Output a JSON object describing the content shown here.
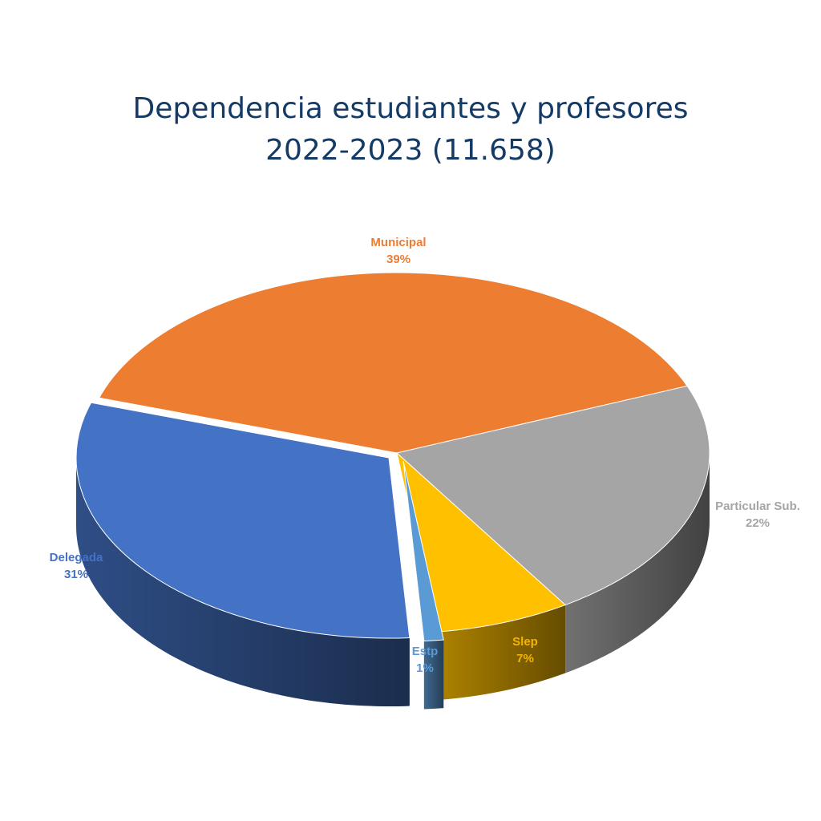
{
  "chart_data": {
    "type": "pie",
    "title_line1": "Dependencia estudiantes y profesores",
    "title_line2": "2022-2023 (11.658)",
    "slices": [
      {
        "name": "Municipal",
        "value": 39,
        "label": "39%",
        "color": "#ED7D31"
      },
      {
        "name": "Particular Sub.",
        "value": 22,
        "label": "22%",
        "color": "#A5A5A5"
      },
      {
        "name": "Slep",
        "value": 7,
        "label": "7%",
        "color": "#FFC000"
      },
      {
        "name": "Estp",
        "value": 1,
        "label": "1%",
        "color": "#5B9BD5"
      },
      {
        "name": "Delegada",
        "value": 31,
        "label": "31%",
        "color": "#4472C4"
      }
    ],
    "label_colors": {
      "Municipal": "#ED7D31",
      "Particular Sub.": "#A5A5A5",
      "Slep": "#F5B400",
      "Estp": "#5B9BD5",
      "Delegada": "#4472C4"
    },
    "three_d": true,
    "legend": "none"
  }
}
